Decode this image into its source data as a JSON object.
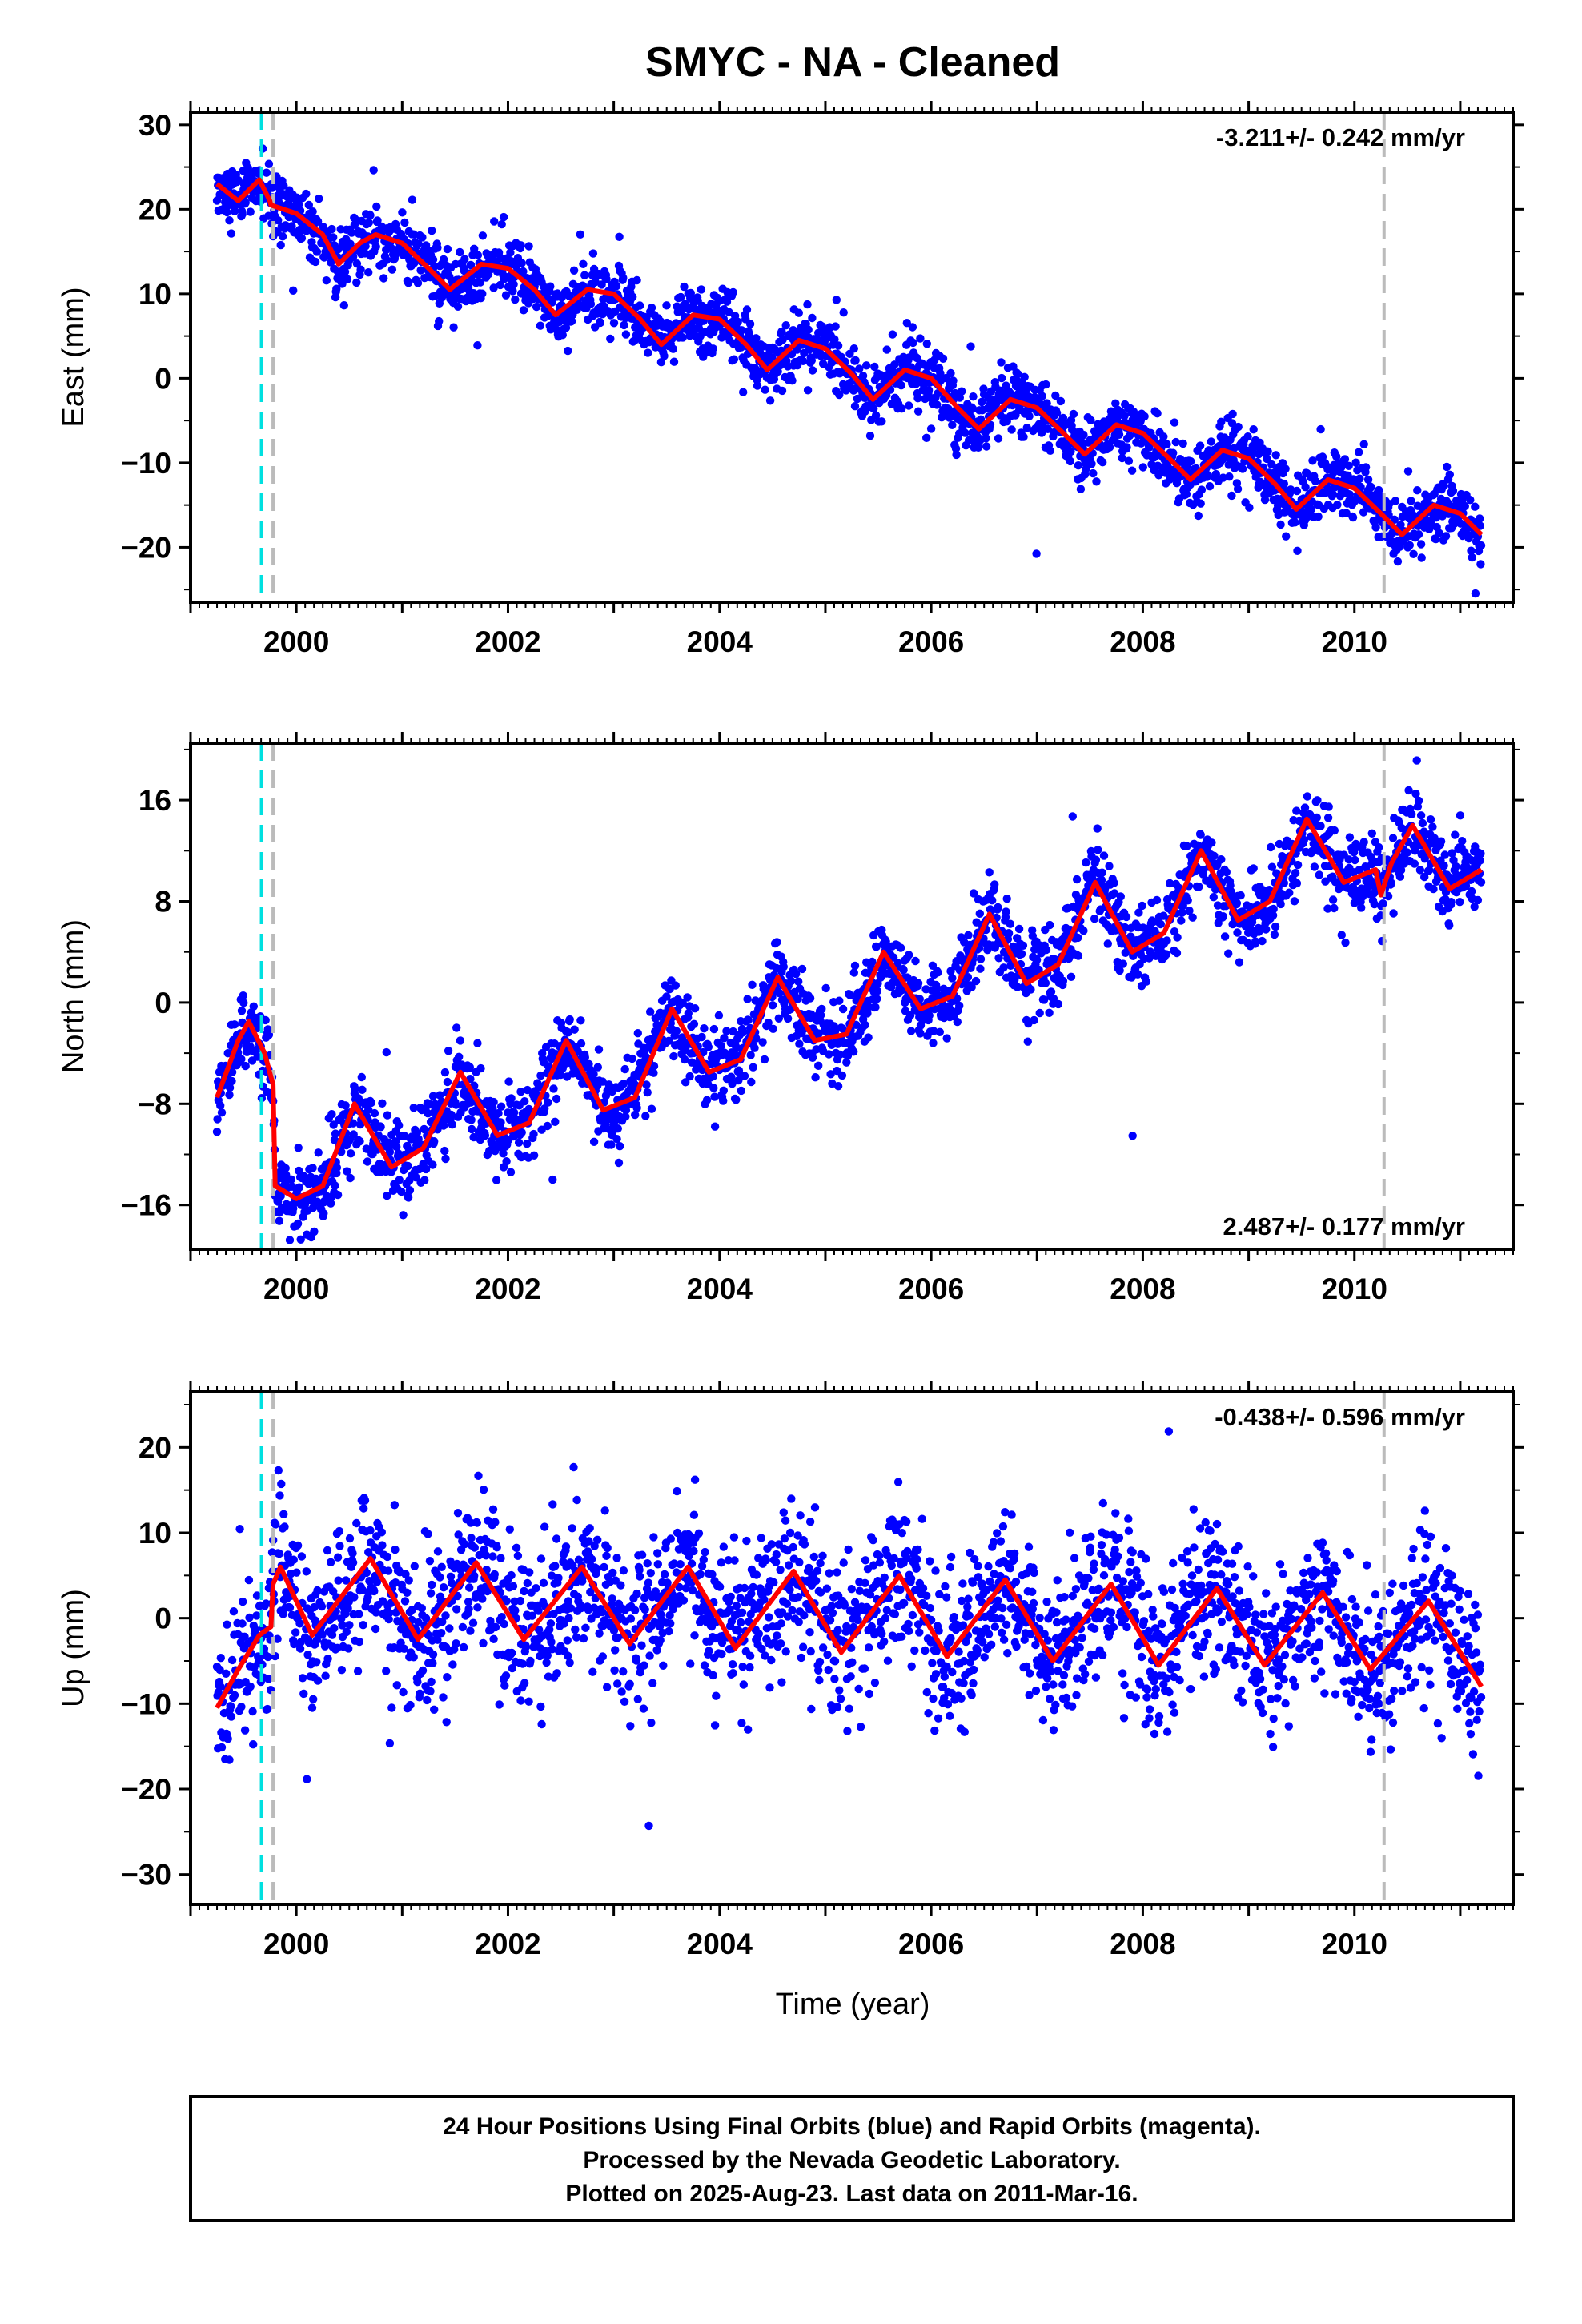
{
  "title": "SMYC  - NA - Cleaned",
  "colors": {
    "points": "#0000ff",
    "fit": "#ff0000",
    "cyan_line": "#00e0e0",
    "gray_line": "#bbbbbb",
    "frame": "#000000"
  },
  "chart_data": [
    {
      "type": "scatter",
      "panel": "east",
      "ylabel": "East (mm)",
      "xlabel": "",
      "xlim": [
        1999.0,
        2011.5
      ],
      "ylim": [
        -26.5,
        31.5
      ],
      "yticks": [
        -20,
        -10,
        0,
        10,
        20,
        30
      ],
      "xticks": [
        2000,
        2002,
        2004,
        2006,
        2008,
        2010
      ],
      "rate_text": "-3.211+/- 0.242 mm/yr",
      "rate_position": "top-right",
      "fit_line_x": [
        1999.25,
        1999.45,
        1999.65,
        1999.75,
        1999.76,
        2000.0,
        2000.25,
        2000.4,
        2000.6,
        2000.75,
        2001.0,
        2001.25,
        2001.45,
        2001.75,
        2002.0,
        2002.25,
        2002.45,
        2002.75,
        2003.0,
        2003.25,
        2003.45,
        2003.75,
        2004.0,
        2004.25,
        2004.45,
        2004.75,
        2005.0,
        2005.25,
        2005.45,
        2005.75,
        2006.0,
        2006.25,
        2006.45,
        2006.75,
        2007.0,
        2007.25,
        2007.45,
        2007.75,
        2008.0,
        2008.25,
        2008.45,
        2008.75,
        2009.0,
        2009.25,
        2009.45,
        2009.75,
        2010.0,
        2010.25,
        2010.45,
        2010.75,
        2011.0,
        2011.2
      ],
      "fit_line_y": [
        23,
        21,
        23.5,
        21,
        20.5,
        19.5,
        17,
        13.5,
        16,
        17,
        16,
        13,
        10.5,
        13.5,
        13,
        10.5,
        7.5,
        10.5,
        10,
        7,
        4,
        7.5,
        7,
        4,
        1,
        4.5,
        3.5,
        0.5,
        -2.5,
        1,
        0,
        -3.5,
        -6,
        -2.5,
        -3.5,
        -6.5,
        -9,
        -5.5,
        -6.5,
        -9.5,
        -12,
        -8.5,
        -9.5,
        -12.5,
        -15.5,
        -12,
        -13,
        -16,
        -18.5,
        -15,
        -16,
        -18.5
      ]
    },
    {
      "type": "scatter",
      "panel": "north",
      "ylabel": "North (mm)",
      "xlabel": "",
      "xlim": [
        1999.0,
        2011.5
      ],
      "ylim": [
        -19.5,
        20.5
      ],
      "yticks": [
        -16,
        -8,
        0,
        8,
        16
      ],
      "xticks": [
        2000,
        2002,
        2004,
        2006,
        2008,
        2010
      ],
      "rate_text": "2.487+/- 0.177 mm/yr",
      "rate_position": "bottom-right",
      "fit_line_x": [
        1999.25,
        1999.45,
        1999.55,
        1999.7,
        1999.78,
        1999.8,
        2000.0,
        2000.25,
        2000.55,
        2000.9,
        2001.2,
        2001.55,
        2001.9,
        2002.2,
        2002.55,
        2002.9,
        2003.2,
        2003.55,
        2003.9,
        2004.2,
        2004.55,
        2004.9,
        2005.2,
        2005.55,
        2005.9,
        2006.2,
        2006.55,
        2006.9,
        2007.2,
        2007.55,
        2007.9,
        2008.2,
        2008.55,
        2008.9,
        2009.2,
        2009.55,
        2009.9,
        2010.2,
        2010.25,
        2010.35,
        2010.55,
        2010.9,
        2011.2
      ],
      "fit_line_y": [
        -7.5,
        -3,
        -1.5,
        -4,
        -6.5,
        -14.5,
        -15.5,
        -14.5,
        -8,
        -13,
        -11.5,
        -5.5,
        -10.5,
        -9.5,
        -3,
        -8.5,
        -7.5,
        -0.5,
        -5.5,
        -4.5,
        2,
        -3,
        -2.5,
        4,
        -0.5,
        0.5,
        7,
        1.5,
        3,
        9.5,
        4,
        5.5,
        12,
        6.5,
        8,
        14.5,
        9.5,
        10.5,
        8.5,
        11,
        14,
        9,
        10.5
      ]
    },
    {
      "type": "scatter",
      "panel": "up",
      "ylabel": "Up (mm)",
      "xlabel": "Time (year)",
      "xlim": [
        1999.0,
        2011.5
      ],
      "ylim": [
        -33.5,
        26.5
      ],
      "yticks": [
        -30,
        -20,
        -10,
        0,
        10,
        20
      ],
      "xticks": [
        2000,
        2002,
        2004,
        2006,
        2008,
        2010
      ],
      "rate_text": "-0.438+/- 0.596 mm/yr",
      "rate_position": "top-right",
      "fit_line_x": [
        1999.25,
        1999.45,
        1999.65,
        1999.76,
        1999.78,
        1999.85,
        2000.15,
        2000.7,
        2001.15,
        2001.7,
        2002.15,
        2002.7,
        2003.15,
        2003.7,
        2004.15,
        2004.7,
        2005.15,
        2005.7,
        2006.15,
        2006.7,
        2007.15,
        2007.7,
        2008.15,
        2008.7,
        2009.15,
        2009.7,
        2010.15,
        2010.7,
        2011.2
      ],
      "fit_line_y": [
        -10.5,
        -6,
        -2,
        -1,
        4,
        6,
        -2,
        7,
        -2.5,
        6.5,
        -2.5,
        6,
        -3,
        6,
        -3.5,
        5.5,
        -4,
        5,
        -4.5,
        4.5,
        -5,
        4,
        -5.5,
        3.5,
        -5.5,
        3,
        -6,
        2,
        -8
      ]
    }
  ],
  "event_lines": {
    "cyan_x": [
      1999.67
    ],
    "gray_x": [
      1999.78,
      2010.28
    ]
  },
  "footer": {
    "line1": "24 Hour Positions Using Final Orbits (blue) and Rapid Orbits (magenta).",
    "line2": "Processed by the Nevada Geodetic Laboratory.",
    "line3": "Plotted on 2025-Aug-23. Last data on 2011-Mar-16."
  }
}
